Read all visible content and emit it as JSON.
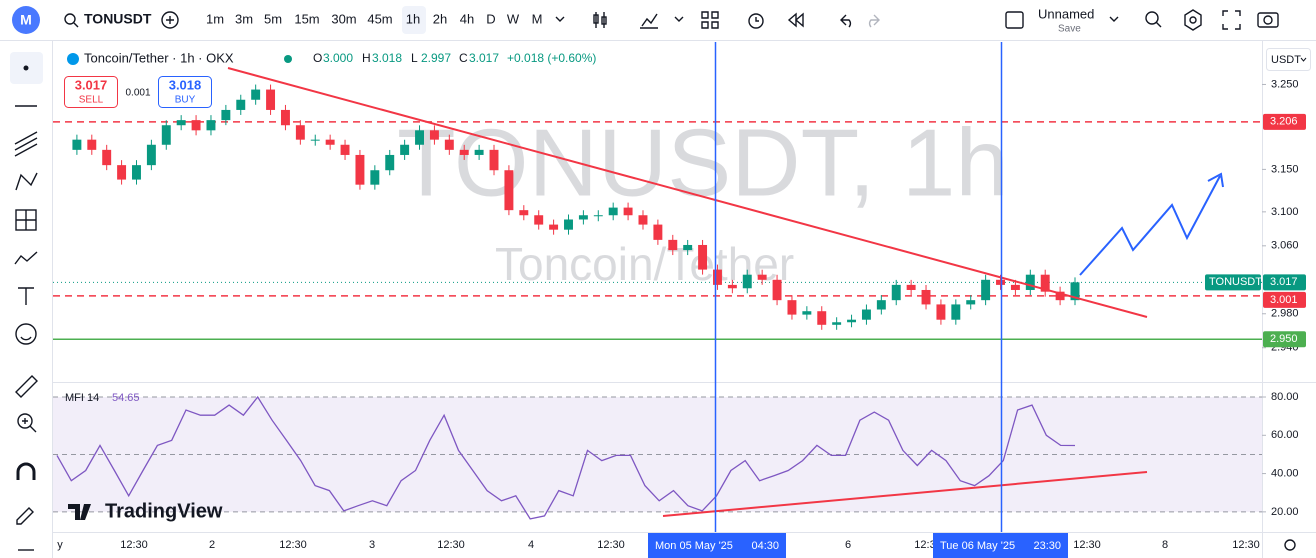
{
  "toolbar": {
    "symbol": "TONUSDT",
    "intervals": [
      "1m",
      "3m",
      "5m",
      "15m",
      "30m",
      "45m",
      "1h",
      "2h",
      "4h",
      "D",
      "W",
      "M"
    ],
    "layout_name": "Unnamed",
    "save": "Save"
  },
  "legend": {
    "title": "Toncoin/Tether · 1h · OKX",
    "ohlc": [
      {
        "key": "O",
        "value": "3.000"
      },
      {
        "key": "H",
        "value": "3.018"
      },
      {
        "key": "L",
        "value": "2.997"
      },
      {
        "key": "C",
        "value": "3.017"
      }
    ],
    "change": "+0.018 (+0.60%)"
  },
  "trade": {
    "sell_price": "3.017",
    "sell": "SELL",
    "spread": "0.001",
    "buy_price": "3.018",
    "buy": "BUY"
  },
  "watermark": {
    "main": "TONUSDT, 1h",
    "sub": "Toncoin/Tether"
  },
  "currency": "USDT",
  "logo": "TradingView",
  "chart_data": {
    "type": "candlestick",
    "up_color": "#089981",
    "down_color": "#f23645",
    "closes": [
      3.173,
      3.185,
      3.173,
      3.155,
      3.138,
      3.155,
      3.179,
      3.202,
      3.208,
      3.196,
      3.208,
      3.22,
      3.232,
      3.244,
      3.22,
      3.202,
      3.185,
      3.185,
      3.179,
      3.167,
      3.132,
      3.149,
      3.167,
      3.179,
      3.196,
      3.185,
      3.173,
      3.167,
      3.173,
      3.149,
      3.102,
      3.096,
      3.085,
      3.079,
      3.091,
      3.096,
      3.096,
      3.105,
      3.096,
      3.085,
      3.067,
      3.055,
      3.061,
      3.032,
      3.014,
      3.01,
      3.026,
      3.02,
      2.996,
      2.979,
      2.983,
      2.967,
      2.97,
      2.973,
      2.985,
      2.996,
      3.014,
      3.008,
      2.991,
      2.973,
      2.991,
      2.996,
      3.02,
      3.014,
      3.008,
      3.026,
      3.006,
      2.996,
      3.017
    ],
    "ylim": [
      2.902,
      3.3
    ],
    "yticks": [
      {
        "value": 3.25,
        "label": "3.250"
      },
      {
        "value": 3.15,
        "label": "3.150"
      },
      {
        "value": 3.1,
        "label": "3.100"
      },
      {
        "value": 3.06,
        "label": "3.060"
      },
      {
        "value": 2.98,
        "label": "2.980"
      },
      {
        "value": 2.94,
        "label": "2.940"
      }
    ],
    "price_lines": [
      {
        "value": 3.206,
        "label": "3.206",
        "color": "#f23645",
        "dashed": true
      },
      {
        "value": 3.001,
        "label": "3.001",
        "color": "#f23645",
        "dashed": true
      },
      {
        "value": 2.95,
        "label": "2.950",
        "color": "#4caf50",
        "dashed": false
      }
    ],
    "last_price": {
      "value": 3.017,
      "label": "3.017",
      "name": "TONUSDT",
      "color": "#089981"
    },
    "xticks": [
      "y",
      "12:30",
      "2",
      "12:30",
      "3",
      "12:30",
      "4",
      "12:30",
      "6",
      "12:3",
      "12:30",
      "8",
      "12:30"
    ],
    "cursor_labels": [
      {
        "date": "Mon 05 May '25",
        "time": "04:30"
      },
      {
        "date": "Tue 06 May '25",
        "time": "23:30"
      }
    ],
    "mfi": {
      "name": "MFI 14",
      "color": "#7e57c2",
      "values": [
        49.5,
        36.3,
        41.6,
        54.7,
        41.6,
        28.4,
        41.6,
        54.7,
        57.4,
        73.2,
        70.5,
        70.5,
        75.8,
        70.5,
        80,
        67.9,
        57.4,
        46.8,
        33.7,
        31.1,
        20.5,
        23.2,
        25.8,
        23.2,
        36.3,
        41.6,
        57.4,
        70.5,
        52.1,
        41.6,
        31.1,
        25.8,
        28.4,
        16.3,
        17.9,
        31.1,
        28.4,
        52.1,
        46.8,
        49.5,
        49.5,
        33.7,
        25.8,
        31.1,
        23.2,
        20.5,
        28.4,
        41.6,
        46.8,
        36.3,
        38.9,
        41.6,
        46.8,
        54.7,
        49.5,
        49.5,
        67.9,
        72.1,
        67.9,
        52.1,
        44.2,
        52.1,
        46.8,
        36.3,
        33.7,
        38.9,
        46.8,
        73.2,
        75.8,
        60,
        54.7,
        54.65
      ],
      "ylim": [
        10,
        86.8
      ],
      "yticks": [
        {
          "value": 80,
          "label": "80.00"
        },
        {
          "value": 60,
          "label": "60.00"
        },
        {
          "value": 40,
          "label": "40.00"
        },
        {
          "value": 20,
          "label": "20.00"
        }
      ],
      "levels": [
        20,
        50,
        80
      ]
    }
  }
}
